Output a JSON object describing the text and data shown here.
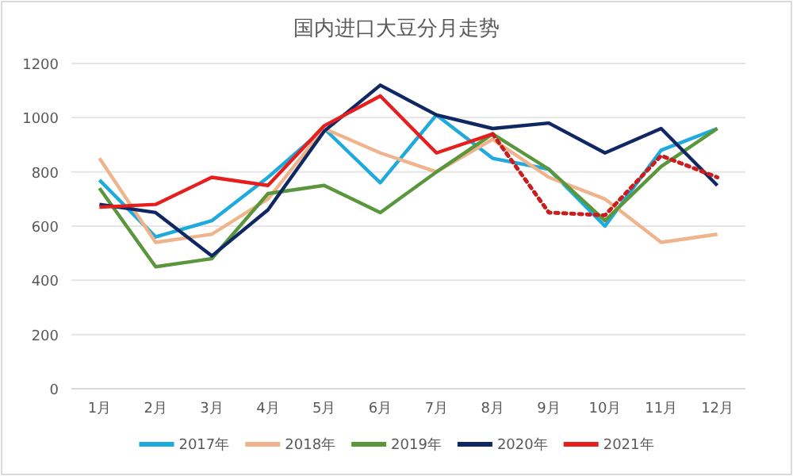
{
  "chart_data": {
    "type": "line",
    "title": "国内进口大豆分月走势",
    "categories": [
      "1月",
      "2月",
      "3月",
      "4月",
      "5月",
      "6月",
      "7月",
      "8月",
      "9月",
      "10月",
      "11月",
      "12月"
    ],
    "series": [
      {
        "name": "2017年",
        "color": "#1eaadc",
        "values": [
          770,
          560,
          620,
          780,
          960,
          760,
          1010,
          850,
          810,
          600,
          880,
          960
        ]
      },
      {
        "name": "2018年",
        "color": "#f0b48c",
        "values": [
          850,
          540,
          570,
          700,
          960,
          870,
          800,
          920,
          780,
          700,
          540,
          570
        ]
      },
      {
        "name": "2019年",
        "color": "#5a963c",
        "values": [
          740,
          450,
          480,
          720,
          750,
          650,
          800,
          940,
          810,
          620,
          820,
          960
        ]
      },
      {
        "name": "2020年",
        "color": "#0f2864",
        "values": [
          680,
          650,
          490,
          660,
          950,
          1120,
          1010,
          960,
          980,
          870,
          960,
          750
        ]
      },
      {
        "name": "2021年",
        "color": "#e61e1e",
        "values": [
          670,
          680,
          780,
          750,
          970,
          1080,
          870,
          940,
          null,
          null,
          null,
          null
        ]
      },
      {
        "color": "#c81e1e",
        "line_style": "dotted",
        "values": [
          null,
          null,
          null,
          null,
          null,
          null,
          null,
          940,
          650,
          640,
          860,
          780
        ]
      }
    ],
    "ylim": [
      0,
      1200
    ],
    "yticks": [
      0,
      200,
      400,
      600,
      800,
      1000,
      1200
    ],
    "grid": "y",
    "legend": "bottom",
    "line_style": "solid",
    "marker": "none"
  }
}
